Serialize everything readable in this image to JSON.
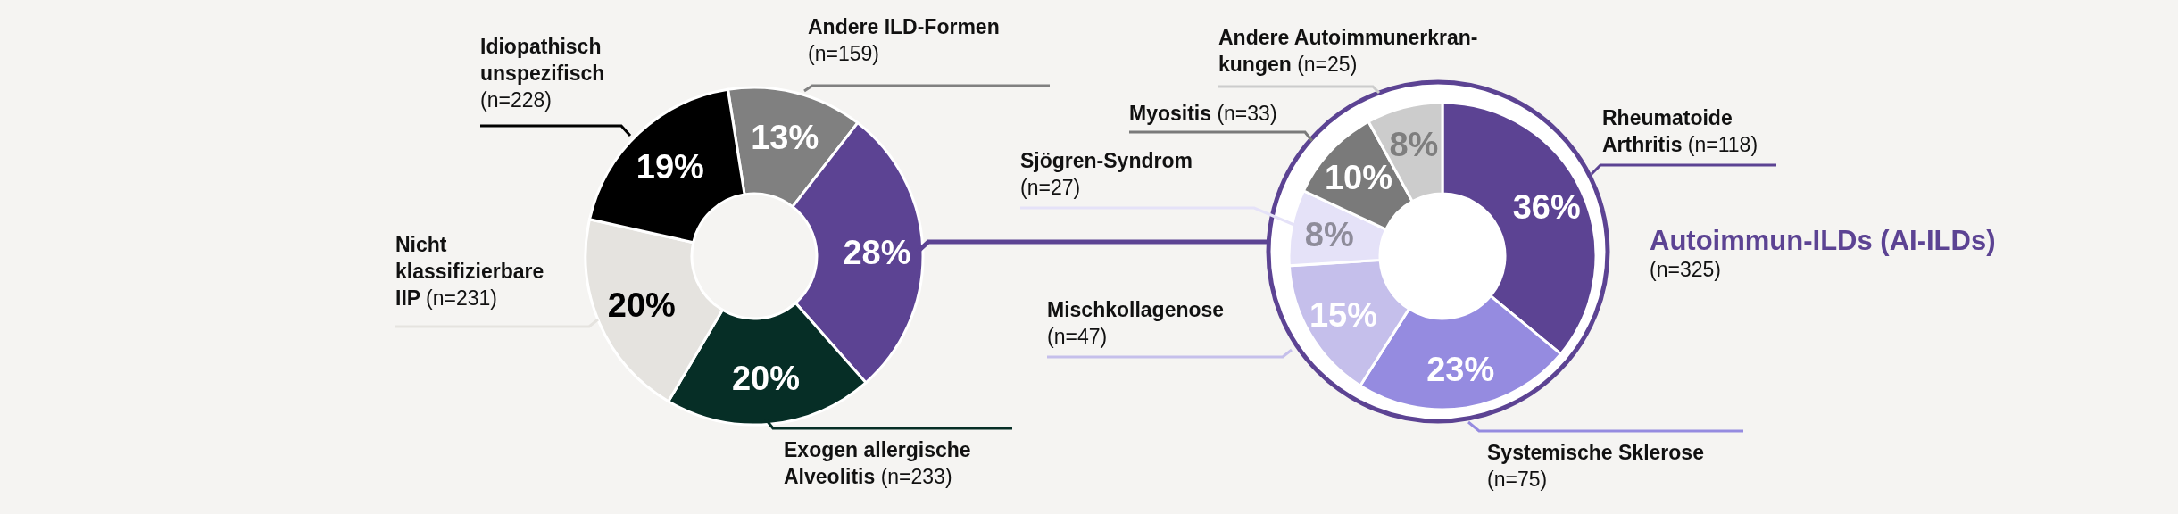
{
  "chart_data": [
    {
      "type": "donut",
      "categories": [
        "Andere ILD-Formen\n(n=159)",
        null,
        "Exogen allergische\nAlveolitis (n=233)",
        "Nicht\nklassifizierbare\nIIP (n=231)",
        "Idiopathisch\nunspezifisch\n(n=228)"
      ],
      "values": [
        13,
        28,
        20,
        20,
        19
      ],
      "colors": [
        "#808080",
        "#5c4393",
        "#062e26",
        "#e5e3df",
        "#000000"
      ],
      "value_labels": [
        "13%",
        "28%",
        "20%",
        "20%",
        "19%"
      ]
    },
    {
      "type": "donut",
      "title": "Autoimmun-ILDs (AI-ILDs)",
      "subtitle": "(n=325)",
      "categories": [
        "Rheumatoide\nArthritis (n=118)",
        "Systemische Sklerose\n(n=75)",
        "Mischkollagenose\n(n=47)",
        "Sjögren-Syndrom\n(n=27)",
        "Myositis (n=33)",
        "Andere Autoimmunerkran-\nkungen (n=25)"
      ],
      "values": [
        36,
        23,
        15,
        8,
        10,
        8
      ],
      "colors": [
        "#5c4393",
        "#958be0",
        "#c5bfeb",
        "#e5e2f8",
        "#7a7a7a",
        "#cccccc"
      ],
      "value_labels": [
        "36%",
        "23%",
        "15%",
        "8%",
        "10%",
        "8%"
      ]
    }
  ]
}
